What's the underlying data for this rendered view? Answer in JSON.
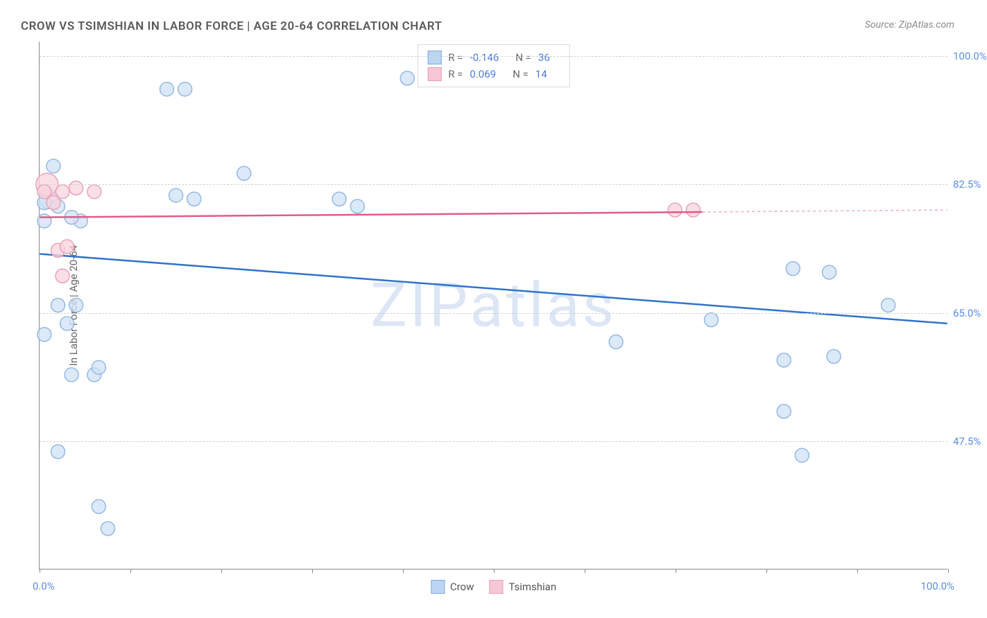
{
  "title": "CROW VS TSIMSHIAN IN LABOR FORCE | AGE 20-64 CORRELATION CHART",
  "source": "Source: ZipAtlas.com",
  "y_axis_title": "In Labor Force | Age 20-64",
  "watermark": "ZIPatlas",
  "x_axis": {
    "min": 0,
    "max": 100,
    "label_left": "0.0%",
    "label_right": "100.0%",
    "tick_positions": [
      0,
      10,
      20,
      30,
      40,
      50,
      60,
      70,
      80,
      90,
      100
    ]
  },
  "y_axis": {
    "min": 30,
    "max": 102,
    "gridlines": [
      {
        "value": 47.5,
        "label": "47.5%"
      },
      {
        "value": 65.0,
        "label": "65.0%"
      },
      {
        "value": 82.5,
        "label": "82.5%"
      },
      {
        "value": 100.0,
        "label": "100.0%"
      }
    ]
  },
  "series": [
    {
      "name": "Crow",
      "fill": "#cfe1f7",
      "stroke": "#94b8e2",
      "line_color": "#2f73c9",
      "swatch_fill": "#bcd5f2",
      "swatch_border": "#7fa9db",
      "marker_radius": 10,
      "R": "-0.146",
      "N": "36",
      "trend": {
        "x1": 0,
        "y1": 73.0,
        "x2": 100,
        "y2": 63.5,
        "x_solid_end": 100
      },
      "points": [
        {
          "x": 1.0,
          "y": 80.5,
          "r": 14
        },
        {
          "x": 0.5,
          "y": 80.0,
          "r": 10
        },
        {
          "x": 1.5,
          "y": 85.0,
          "r": 10
        },
        {
          "x": 0.5,
          "y": 77.5,
          "r": 10
        },
        {
          "x": 2.0,
          "y": 79.5,
          "r": 10
        },
        {
          "x": 4.5,
          "y": 77.5,
          "r": 10
        },
        {
          "x": 3.5,
          "y": 78.0,
          "r": 10
        },
        {
          "x": 2.0,
          "y": 66.0,
          "r": 10
        },
        {
          "x": 4.0,
          "y": 66.0,
          "r": 10
        },
        {
          "x": 0.5,
          "y": 62.0,
          "r": 10
        },
        {
          "x": 3.0,
          "y": 63.5,
          "r": 10
        },
        {
          "x": 3.5,
          "y": 56.5,
          "r": 10
        },
        {
          "x": 6.0,
          "y": 56.5,
          "r": 10
        },
        {
          "x": 6.5,
          "y": 57.5,
          "r": 10
        },
        {
          "x": 2.0,
          "y": 46.0,
          "r": 10
        },
        {
          "x": 6.5,
          "y": 38.5,
          "r": 10
        },
        {
          "x": 7.5,
          "y": 35.5,
          "r": 10
        },
        {
          "x": 14.0,
          "y": 95.5,
          "r": 10
        },
        {
          "x": 16.0,
          "y": 95.5,
          "r": 10
        },
        {
          "x": 15.0,
          "y": 81.0,
          "r": 10
        },
        {
          "x": 17.0,
          "y": 80.5,
          "r": 10
        },
        {
          "x": 22.5,
          "y": 84.0,
          "r": 10
        },
        {
          "x": 33.0,
          "y": 80.5,
          "r": 10
        },
        {
          "x": 35.0,
          "y": 79.5,
          "r": 10
        },
        {
          "x": 40.5,
          "y": 97.0,
          "r": 10
        },
        {
          "x": 63.5,
          "y": 61.0,
          "r": 10
        },
        {
          "x": 74.0,
          "y": 64.0,
          "r": 10
        },
        {
          "x": 82.0,
          "y": 58.5,
          "r": 10
        },
        {
          "x": 87.5,
          "y": 59.0,
          "r": 10
        },
        {
          "x": 83.0,
          "y": 71.0,
          "r": 10
        },
        {
          "x": 87.0,
          "y": 70.5,
          "r": 10
        },
        {
          "x": 93.5,
          "y": 66.0,
          "r": 10
        },
        {
          "x": 82.0,
          "y": 51.5,
          "r": 10
        },
        {
          "x": 84.0,
          "y": 45.5,
          "r": 10
        }
      ]
    },
    {
      "name": "Tsimshian",
      "fill": "#f9d4de",
      "stroke": "#e9a2b7",
      "line_color": "#e05a86",
      "swatch_fill": "#f6c7d4",
      "swatch_border": "#e59cb2",
      "marker_radius": 10,
      "R": "0.069",
      "N": "14",
      "trend": {
        "x1": 0,
        "y1": 78.0,
        "x2": 100,
        "y2": 79.0,
        "x_solid_end": 73
      },
      "points": [
        {
          "x": 0.8,
          "y": 82.5,
          "r": 16
        },
        {
          "x": 0.5,
          "y": 81.5,
          "r": 10
        },
        {
          "x": 1.5,
          "y": 80.0,
          "r": 10
        },
        {
          "x": 2.5,
          "y": 81.5,
          "r": 10
        },
        {
          "x": 4.0,
          "y": 82.0,
          "r": 10
        },
        {
          "x": 6.0,
          "y": 81.5,
          "r": 10
        },
        {
          "x": 2.0,
          "y": 73.5,
          "r": 10
        },
        {
          "x": 3.0,
          "y": 74.0,
          "r": 10
        },
        {
          "x": 2.5,
          "y": 70.0,
          "r": 10
        },
        {
          "x": 70.0,
          "y": 79.0,
          "r": 10
        },
        {
          "x": 72.0,
          "y": 79.0,
          "r": 10
        }
      ]
    }
  ],
  "legend_bottom": [
    {
      "label": "Crow",
      "fill": "#bcd5f2",
      "border": "#7fa9db"
    },
    {
      "label": "Tsimshian",
      "fill": "#f6c7d4",
      "border": "#e59cb2"
    }
  ]
}
